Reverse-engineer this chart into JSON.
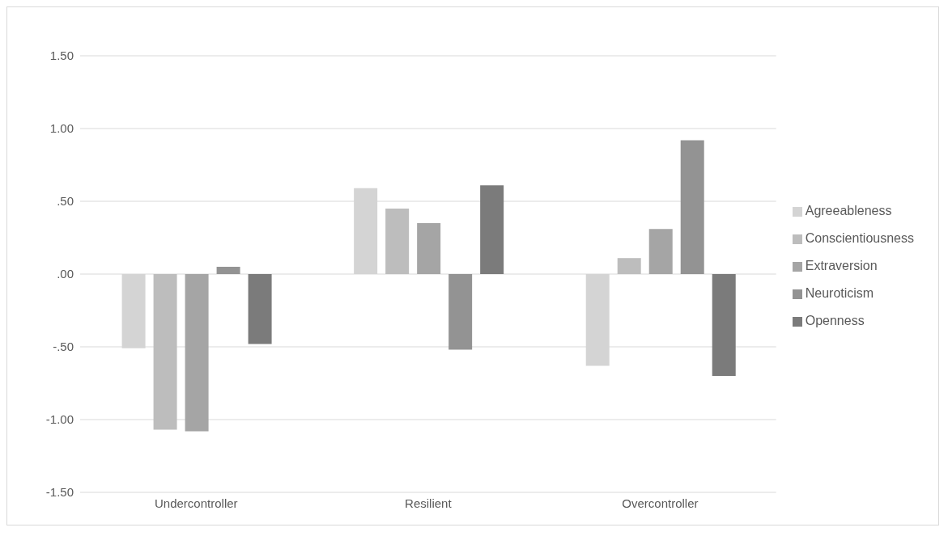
{
  "chart_data": {
    "type": "bar",
    "categories": [
      "Undercontroller",
      "Resilient",
      "Overcontroller"
    ],
    "series": [
      {
        "name": "Agreeableness",
        "color": "#d4d4d4",
        "values": [
          -0.51,
          0.59,
          -0.63
        ]
      },
      {
        "name": "Conscientiousness",
        "color": "#bdbdbd",
        "values": [
          -1.07,
          0.45,
          0.11
        ]
      },
      {
        "name": "Extraversion",
        "color": "#a5a5a5",
        "values": [
          -1.08,
          0.35,
          0.31
        ]
      },
      {
        "name": "Neuroticism",
        "color": "#939393",
        "values": [
          0.05,
          -0.52,
          0.92
        ]
      },
      {
        "name": "Openness",
        "color": "#7b7b7b",
        "values": [
          -0.48,
          0.61,
          -0.7
        ]
      }
    ],
    "ylim": [
      -1.5,
      1.5
    ],
    "yticks": [
      {
        "value": -1.5,
        "label": "-1.50"
      },
      {
        "value": -1,
        "label": "-1.00"
      },
      {
        "value": -0.5,
        "label": "-.50"
      },
      {
        "value": 0,
        "label": ".00"
      },
      {
        "value": 0.5,
        "label": ".50"
      },
      {
        "value": 1,
        "label": "1.00"
      },
      {
        "value": 1.5,
        "label": "1.50"
      }
    ],
    "grid": "y",
    "legend": "right"
  }
}
